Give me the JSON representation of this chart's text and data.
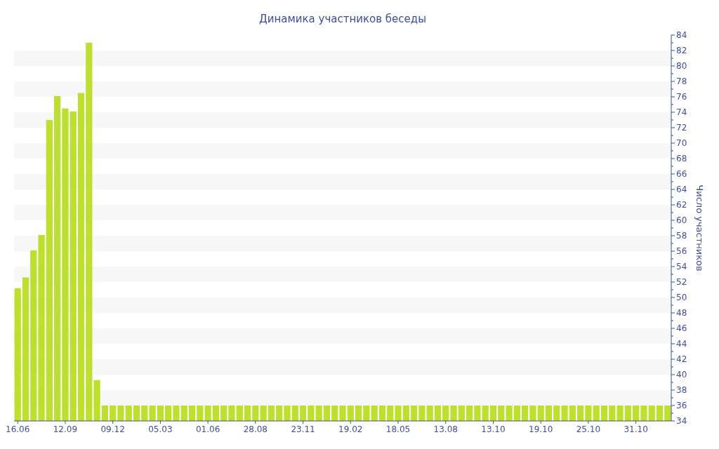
{
  "chart_data": {
    "type": "bar",
    "title": "Динамика участников беседы",
    "ylabel": "Число участников",
    "categories": [
      "16.06",
      null,
      null,
      null,
      null,
      null,
      "12.09",
      null,
      null,
      null,
      null,
      null,
      "09.12",
      null,
      null,
      null,
      null,
      null,
      "05.03",
      null,
      null,
      null,
      null,
      null,
      "01.06",
      null,
      null,
      null,
      null,
      null,
      "28.08",
      null,
      null,
      null,
      null,
      null,
      "23.11",
      null,
      null,
      null,
      null,
      null,
      "19.02",
      null,
      null,
      null,
      null,
      null,
      "18.05",
      null,
      null,
      null,
      null,
      null,
      "13.08",
      null,
      null,
      null,
      null,
      null,
      "13.10",
      null,
      null,
      null,
      null,
      null,
      "19.10",
      null,
      null,
      null,
      null,
      null,
      "25.10",
      null,
      null,
      null,
      null,
      null,
      "31.10",
      null,
      null,
      null,
      null
    ],
    "series": [
      {
        "color": "#bde02f",
        "values": [
          51.2,
          52.6,
          56.1,
          58.1,
          73,
          76.1,
          74.5,
          74.1,
          76.5,
          83,
          39.3,
          36,
          36,
          36,
          36,
          36,
          36,
          36,
          36,
          36,
          36,
          36,
          36,
          36,
          36,
          36,
          36,
          36,
          36,
          36,
          36,
          36,
          36,
          36,
          36,
          36,
          36,
          36,
          36,
          36,
          36,
          36,
          36,
          36,
          36,
          36,
          36,
          36,
          36,
          36,
          36,
          36,
          36,
          36,
          36,
          36,
          36,
          36,
          36,
          36,
          36,
          36,
          36,
          36,
          36,
          36,
          36,
          36,
          36,
          36,
          36,
          36,
          36,
          36,
          36,
          36,
          36,
          36,
          36,
          36,
          36,
          36,
          36
        ]
      }
    ],
    "ylim": [
      34,
      84
    ],
    "yticks": [
      34,
      36,
      38,
      40,
      42,
      44,
      46,
      48,
      50,
      52,
      54,
      56,
      58,
      60,
      62,
      64,
      66,
      68,
      70,
      72,
      74,
      76,
      78,
      80,
      82,
      84
    ],
    "bands": [
      {
        "axis": "y",
        "from": 36,
        "to": 38,
        "color": "#f7f7f7"
      },
      {
        "axis": "y",
        "from": 40,
        "to": 42,
        "color": "#f7f7f7"
      },
      {
        "axis": "y",
        "from": 44,
        "to": 46,
        "color": "#f7f7f7"
      },
      {
        "axis": "y",
        "from": 48,
        "to": 50,
        "color": "#f7f7f7"
      },
      {
        "axis": "y",
        "from": 52,
        "to": 54,
        "color": "#f7f7f7"
      },
      {
        "axis": "y",
        "from": 56,
        "to": 58,
        "color": "#f7f7f7"
      },
      {
        "axis": "y",
        "from": 60,
        "to": 62,
        "color": "#f7f7f7"
      },
      {
        "axis": "y",
        "from": 64,
        "to": 66,
        "color": "#f7f7f7"
      },
      {
        "axis": "y",
        "from": 68,
        "to": 70,
        "color": "#f7f7f7"
      },
      {
        "axis": "y",
        "from": 72,
        "to": 74,
        "color": "#f7f7f7"
      },
      {
        "axis": "y",
        "from": 76,
        "to": 78,
        "color": "#f7f7f7"
      },
      {
        "axis": "y",
        "from": 80,
        "to": 82,
        "color": "#f7f7f7"
      }
    ]
  }
}
